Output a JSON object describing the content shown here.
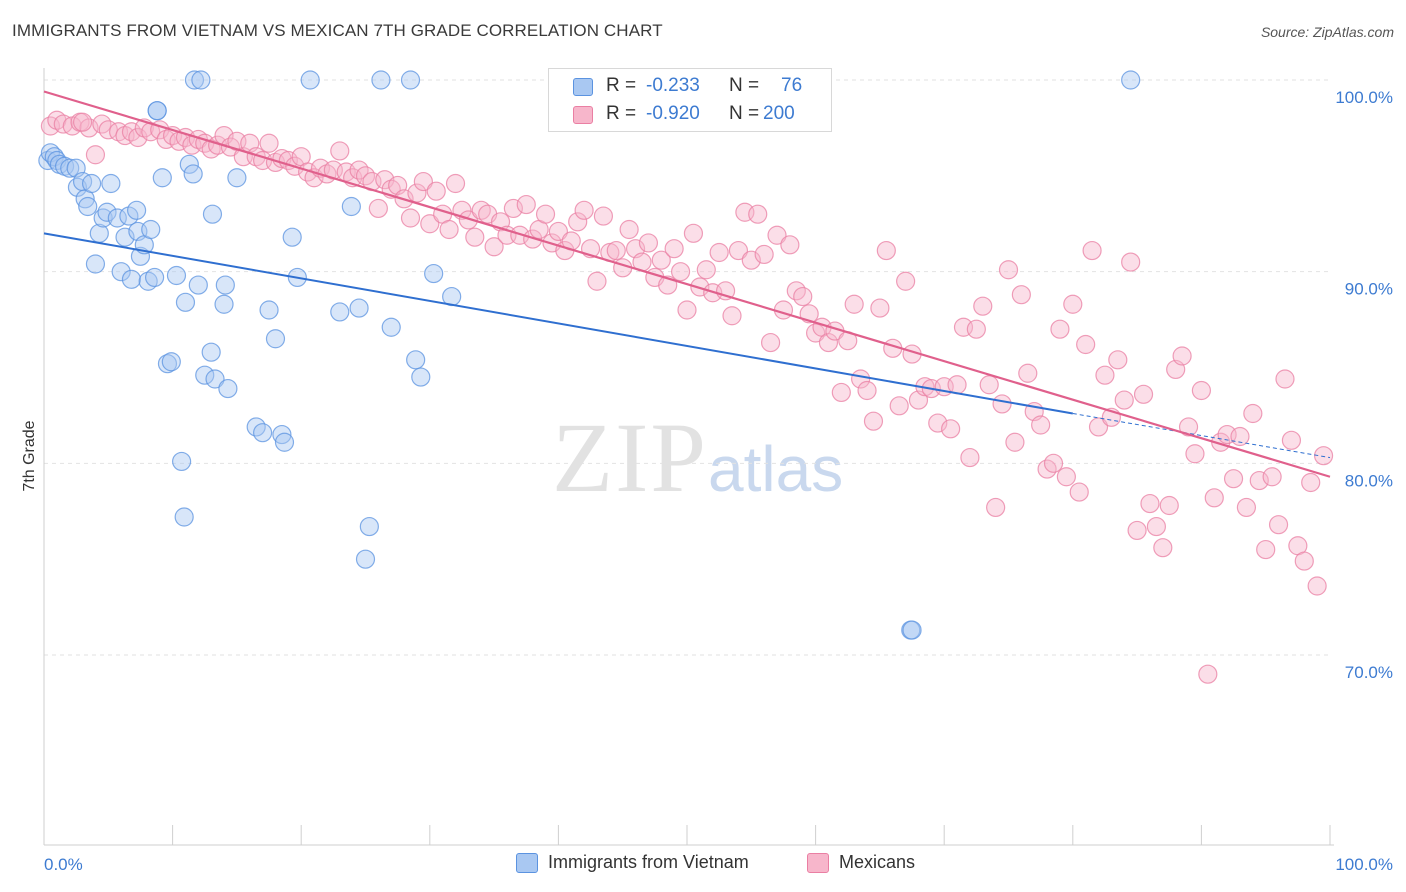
{
  "header": {
    "title": "IMMIGRANTS FROM VIETNAM VS MEXICAN 7TH GRADE CORRELATION CHART",
    "source": "Source: ZipAtlas.com"
  },
  "legend": {
    "rows": [
      {
        "r_label": "R =",
        "r_value": "-0.233",
        "n_label": "N =",
        "n_value": "76",
        "color": "#a9c8f2"
      },
      {
        "r_label": "R =",
        "r_value": "-0.920",
        "n_label": "N =",
        "n_value": "200",
        "color": "#f7b6cb"
      }
    ]
  },
  "bottom_legend": {
    "vietnam": "Immigrants from Vietnam",
    "mexicans": "Mexicans"
  },
  "watermark": {
    "zip": "ZIP",
    "atlas": "atlas"
  },
  "chart_data": {
    "type": "scatter",
    "title": "IMMIGRANTS FROM VIETNAM VS MEXICAN 7TH GRADE CORRELATION CHART",
    "xlabel": "",
    "ylabel": "7th Grade",
    "xlim": [
      0,
      100
    ],
    "ylim": [
      60,
      102
    ],
    "x_tick_labels": [
      "0.0%",
      "100.0%"
    ],
    "y_ticks": [
      {
        "value": 100,
        "label": "100.0%"
      },
      {
        "value": 90,
        "label": "90.0%"
      },
      {
        "value": 80,
        "label": "80.0%"
      },
      {
        "value": 70,
        "label": "70.0%"
      }
    ],
    "grid": true,
    "legend_position": "top-center",
    "colors": {
      "vietnam": "#5b93e0",
      "vietnam_fill": "#a9c8f2",
      "vietnam_line": "#2f6fd0",
      "mexicans": "#ea7fa3",
      "mexicans_fill": "#f7b6cb",
      "mexicans_line": "#e0608c"
    },
    "series": [
      {
        "name": "Immigrants from Vietnam",
        "trend": {
          "x0": 0,
          "y0": 92.0,
          "x1": 80,
          "y1": 82.6,
          "dash_to_x": 100,
          "dash_to_y": 80.3
        },
        "points": [
          [
            0.3,
            95.8
          ],
          [
            0.5,
            96.2
          ],
          [
            0.8,
            96.0
          ],
          [
            1.0,
            95.8
          ],
          [
            1.2,
            95.6
          ],
          [
            1.6,
            95.5
          ],
          [
            2.0,
            95.4
          ],
          [
            2.5,
            95.4
          ],
          [
            2.6,
            94.4
          ],
          [
            3.0,
            94.7
          ],
          [
            3.2,
            93.8
          ],
          [
            3.4,
            93.4
          ],
          [
            3.7,
            94.6
          ],
          [
            4.0,
            90.4
          ],
          [
            4.3,
            92.0
          ],
          [
            4.6,
            92.8
          ],
          [
            4.9,
            93.1
          ],
          [
            5.2,
            94.6
          ],
          [
            5.7,
            92.8
          ],
          [
            6.0,
            90.0
          ],
          [
            6.3,
            91.8
          ],
          [
            6.6,
            92.9
          ],
          [
            6.8,
            89.6
          ],
          [
            7.2,
            93.2
          ],
          [
            7.3,
            92.1
          ],
          [
            7.5,
            90.8
          ],
          [
            7.8,
            91.4
          ],
          [
            8.1,
            89.5
          ],
          [
            8.3,
            92.2
          ],
          [
            8.6,
            89.7
          ],
          [
            8.8,
            98.4
          ],
          [
            9.2,
            94.9
          ],
          [
            9.6,
            85.2
          ],
          [
            9.9,
            85.3
          ],
          [
            10.3,
            89.8
          ],
          [
            10.7,
            80.1
          ],
          [
            10.9,
            77.2
          ],
          [
            11.0,
            88.4
          ],
          [
            11.3,
            95.6
          ],
          [
            11.6,
            95.1
          ],
          [
            11.7,
            100.0
          ],
          [
            12.0,
            89.3
          ],
          [
            12.5,
            84.6
          ],
          [
            13.1,
            93.0
          ],
          [
            13.3,
            84.4
          ],
          [
            14.0,
            88.3
          ],
          [
            14.1,
            89.3
          ],
          [
            14.3,
            83.9
          ],
          [
            15.0,
            94.9
          ],
          [
            16.5,
            81.9
          ],
          [
            17.0,
            81.6
          ],
          [
            17.5,
            88.0
          ],
          [
            18.0,
            86.5
          ],
          [
            18.5,
            81.5
          ],
          [
            18.7,
            81.1
          ],
          [
            19.3,
            91.8
          ],
          [
            19.7,
            89.7
          ],
          [
            20.7,
            100.0
          ],
          [
            23.0,
            87.9
          ],
          [
            23.9,
            93.4
          ],
          [
            24.5,
            88.1
          ],
          [
            25.0,
            75.0
          ],
          [
            25.3,
            76.7
          ],
          [
            26.2,
            100.0
          ],
          [
            27.0,
            87.1
          ],
          [
            28.5,
            100.0
          ],
          [
            28.9,
            85.4
          ],
          [
            29.3,
            84.5
          ],
          [
            30.3,
            89.9
          ],
          [
            31.7,
            88.7
          ],
          [
            8.8,
            98.4
          ],
          [
            12.2,
            100.0
          ],
          [
            67.4,
            71.3
          ],
          [
            67.5,
            71.3
          ],
          [
            84.5,
            100.0
          ],
          [
            13.0,
            85.8
          ]
        ]
      },
      {
        "name": "Mexicans",
        "trend": {
          "x0": 0,
          "y0": 99.4,
          "x1": 100,
          "y1": 79.3
        },
        "points": [
          [
            0.5,
            97.6
          ],
          [
            1.0,
            97.9
          ],
          [
            1.5,
            97.7
          ],
          [
            2.2,
            97.6
          ],
          [
            2.8,
            97.8
          ],
          [
            3.5,
            97.5
          ],
          [
            4.0,
            96.1
          ],
          [
            4.5,
            97.7
          ],
          [
            5.0,
            97.4
          ],
          [
            5.8,
            97.3
          ],
          [
            6.3,
            97.1
          ],
          [
            6.8,
            97.3
          ],
          [
            7.3,
            97.0
          ],
          [
            7.8,
            97.5
          ],
          [
            8.3,
            97.3
          ],
          [
            9.0,
            97.4
          ],
          [
            9.5,
            96.9
          ],
          [
            10.0,
            97.1
          ],
          [
            10.5,
            96.8
          ],
          [
            11.0,
            97.0
          ],
          [
            11.5,
            96.6
          ],
          [
            12.0,
            96.9
          ],
          [
            12.5,
            96.7
          ],
          [
            13.0,
            96.4
          ],
          [
            13.5,
            96.6
          ],
          [
            14.0,
            97.1
          ],
          [
            14.5,
            96.5
          ],
          [
            15.0,
            96.8
          ],
          [
            15.5,
            96.0
          ],
          [
            16.0,
            96.7
          ],
          [
            16.5,
            96.0
          ],
          [
            17.0,
            95.8
          ],
          [
            17.5,
            96.7
          ],
          [
            18.0,
            95.7
          ],
          [
            18.5,
            95.9
          ],
          [
            19.0,
            95.8
          ],
          [
            19.5,
            95.5
          ],
          [
            20.0,
            96.0
          ],
          [
            20.5,
            95.2
          ],
          [
            21.0,
            94.9
          ],
          [
            21.5,
            95.4
          ],
          [
            22.0,
            95.1
          ],
          [
            22.5,
            95.3
          ],
          [
            23.0,
            96.3
          ],
          [
            23.5,
            95.2
          ],
          [
            24.0,
            94.9
          ],
          [
            24.5,
            95.3
          ],
          [
            25.0,
            95.0
          ],
          [
            25.5,
            94.7
          ],
          [
            26.0,
            93.3
          ],
          [
            26.5,
            94.8
          ],
          [
            27.0,
            94.3
          ],
          [
            27.5,
            94.5
          ],
          [
            28.0,
            93.8
          ],
          [
            28.5,
            92.8
          ],
          [
            29.0,
            94.1
          ],
          [
            29.5,
            94.7
          ],
          [
            30.0,
            92.5
          ],
          [
            30.5,
            94.2
          ],
          [
            31.0,
            93.0
          ],
          [
            31.5,
            92.2
          ],
          [
            32.0,
            94.6
          ],
          [
            32.5,
            93.2
          ],
          [
            33.0,
            92.7
          ],
          [
            33.5,
            91.8
          ],
          [
            34.0,
            93.2
          ],
          [
            34.5,
            93.0
          ],
          [
            35.0,
            91.3
          ],
          [
            35.5,
            92.6
          ],
          [
            36.0,
            91.9
          ],
          [
            36.5,
            93.3
          ],
          [
            37.0,
            91.9
          ],
          [
            37.5,
            93.5
          ],
          [
            38.0,
            91.7
          ],
          [
            38.5,
            92.2
          ],
          [
            39.0,
            93.0
          ],
          [
            39.5,
            91.5
          ],
          [
            40.0,
            92.1
          ],
          [
            40.5,
            91.1
          ],
          [
            41.0,
            91.6
          ],
          [
            41.5,
            92.6
          ],
          [
            42.0,
            93.2
          ],
          [
            42.5,
            91.2
          ],
          [
            43.0,
            89.5
          ],
          [
            43.5,
            92.9
          ],
          [
            44.0,
            91.0
          ],
          [
            44.5,
            91.1
          ],
          [
            45.0,
            90.2
          ],
          [
            45.5,
            92.2
          ],
          [
            46.0,
            91.2
          ],
          [
            46.5,
            90.5
          ],
          [
            47.0,
            91.5
          ],
          [
            47.5,
            89.7
          ],
          [
            48.0,
            90.6
          ],
          [
            48.5,
            89.3
          ],
          [
            49.0,
            91.2
          ],
          [
            49.5,
            90.0
          ],
          [
            50.0,
            88.0
          ],
          [
            50.5,
            92.0
          ],
          [
            51.0,
            89.2
          ],
          [
            51.5,
            90.1
          ],
          [
            52.0,
            88.9
          ],
          [
            52.5,
            91.0
          ],
          [
            53.0,
            89.0
          ],
          [
            53.5,
            87.7
          ],
          [
            54.0,
            91.1
          ],
          [
            54.5,
            93.1
          ],
          [
            55.0,
            90.6
          ],
          [
            55.5,
            93.0
          ],
          [
            56.0,
            90.9
          ],
          [
            56.5,
            86.3
          ],
          [
            57.0,
            91.9
          ],
          [
            57.5,
            88.0
          ],
          [
            58.0,
            91.4
          ],
          [
            58.5,
            89.0
          ],
          [
            59.0,
            88.7
          ],
          [
            59.5,
            87.8
          ],
          [
            60.0,
            86.8
          ],
          [
            60.5,
            87.1
          ],
          [
            61.0,
            86.3
          ],
          [
            61.5,
            86.9
          ],
          [
            62.0,
            83.7
          ],
          [
            62.5,
            86.4
          ],
          [
            63.0,
            88.3
          ],
          [
            63.5,
            84.4
          ],
          [
            64.0,
            83.8
          ],
          [
            64.5,
            82.2
          ],
          [
            65.0,
            88.1
          ],
          [
            65.5,
            91.1
          ],
          [
            66.0,
            86.0
          ],
          [
            66.5,
            83.0
          ],
          [
            67.0,
            89.5
          ],
          [
            67.5,
            85.7
          ],
          [
            68.0,
            83.3
          ],
          [
            68.5,
            84.0
          ],
          [
            69.0,
            83.9
          ],
          [
            69.5,
            82.1
          ],
          [
            70.0,
            84.0
          ],
          [
            70.5,
            81.8
          ],
          [
            71.0,
            84.1
          ],
          [
            71.5,
            87.1
          ],
          [
            72.0,
            80.3
          ],
          [
            72.5,
            87.0
          ],
          [
            73.0,
            88.2
          ],
          [
            73.5,
            84.1
          ],
          [
            74.0,
            77.7
          ],
          [
            74.5,
            83.1
          ],
          [
            75.0,
            90.1
          ],
          [
            75.5,
            81.1
          ],
          [
            76.0,
            88.8
          ],
          [
            76.5,
            84.7
          ],
          [
            77.0,
            82.7
          ],
          [
            77.5,
            82.0
          ],
          [
            78.0,
            79.7
          ],
          [
            78.5,
            80.0
          ],
          [
            79.0,
            87.0
          ],
          [
            79.5,
            79.3
          ],
          [
            80.0,
            88.3
          ],
          [
            80.5,
            78.5
          ],
          [
            81.0,
            86.2
          ],
          [
            81.5,
            91.1
          ],
          [
            82.0,
            81.9
          ],
          [
            82.5,
            84.6
          ],
          [
            83.0,
            82.4
          ],
          [
            83.5,
            85.4
          ],
          [
            84.0,
            83.3
          ],
          [
            84.5,
            90.5
          ],
          [
            85.0,
            76.5
          ],
          [
            85.5,
            83.6
          ],
          [
            86.0,
            77.9
          ],
          [
            86.5,
            76.7
          ],
          [
            87.0,
            75.6
          ],
          [
            87.5,
            77.8
          ],
          [
            88.0,
            84.9
          ],
          [
            88.5,
            85.6
          ],
          [
            89.0,
            81.9
          ],
          [
            89.5,
            80.5
          ],
          [
            90.0,
            83.8
          ],
          [
            90.5,
            69.0
          ],
          [
            91.0,
            78.2
          ],
          [
            91.5,
            81.1
          ],
          [
            92.0,
            81.5
          ],
          [
            92.5,
            79.2
          ],
          [
            93.0,
            81.4
          ],
          [
            93.5,
            77.7
          ],
          [
            94.0,
            82.6
          ],
          [
            94.5,
            79.1
          ],
          [
            95.0,
            75.5
          ],
          [
            95.5,
            79.3
          ],
          [
            96.0,
            76.8
          ],
          [
            96.5,
            84.4
          ],
          [
            97.0,
            81.2
          ],
          [
            97.5,
            75.7
          ],
          [
            98.0,
            74.9
          ],
          [
            98.5,
            79.0
          ],
          [
            99.0,
            73.6
          ],
          [
            99.5,
            80.4
          ],
          [
            3.0,
            97.8
          ]
        ]
      }
    ]
  }
}
